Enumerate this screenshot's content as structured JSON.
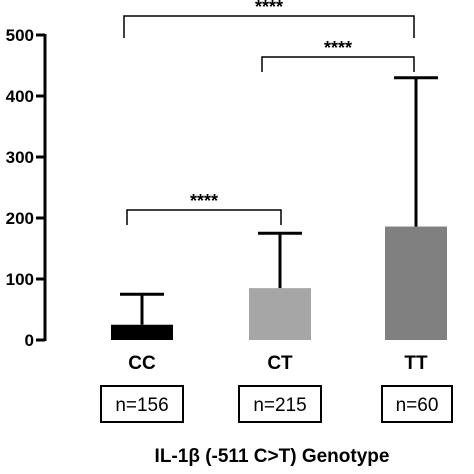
{
  "chart_data": {
    "type": "bar",
    "categories": [
      "CC",
      "CT",
      "TT"
    ],
    "values": [
      25,
      85,
      186
    ],
    "error_upper": [
      75,
      175,
      430
    ],
    "colors": [
      "#000000",
      "#a6a6a6",
      "#808080"
    ],
    "ylim": [
      0,
      500
    ],
    "yticks": [
      "0",
      "100",
      "200",
      "300",
      "400",
      "500"
    ],
    "sample_sizes": [
      "n=156",
      "n=215",
      "n=60"
    ],
    "significance": [
      {
        "from": 0,
        "to": 2,
        "label": "****"
      },
      {
        "from": 1,
        "to": 2,
        "label": "****"
      },
      {
        "from": 0,
        "to": 1,
        "label": "****"
      }
    ],
    "xlabel": "IL-1β (-511 C>T) Genotype",
    "ylabel": "",
    "title": "",
    "grid": false
  }
}
